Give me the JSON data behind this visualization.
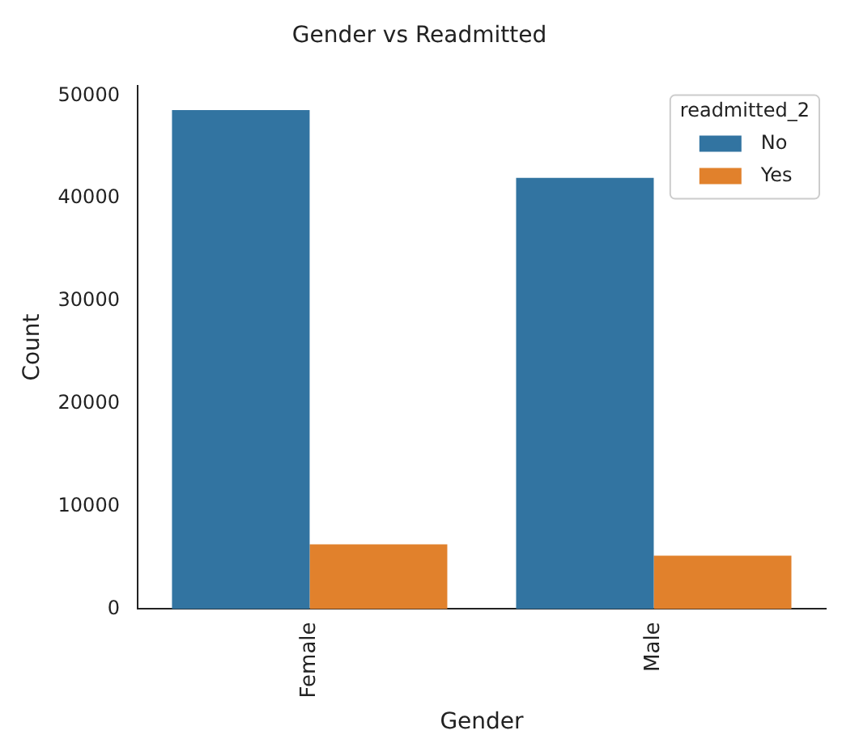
{
  "chart_data": {
    "type": "bar",
    "title": "Gender vs Readmitted",
    "xlabel": "Gender",
    "ylabel": "Count",
    "legend_title": "readmitted_2",
    "legend": "top right",
    "grid": false,
    "categories": [
      "Female",
      "Male"
    ],
    "series": [
      {
        "name": "No",
        "color": "#3274a1",
        "values": [
          48600,
          42000
        ]
      },
      {
        "name": "Yes",
        "color": "#e1812c",
        "values": [
          6300,
          5200
        ]
      }
    ],
    "ylim": [
      0,
      51000
    ],
    "yticks": [
      0,
      10000,
      20000,
      30000,
      40000,
      50000
    ]
  }
}
